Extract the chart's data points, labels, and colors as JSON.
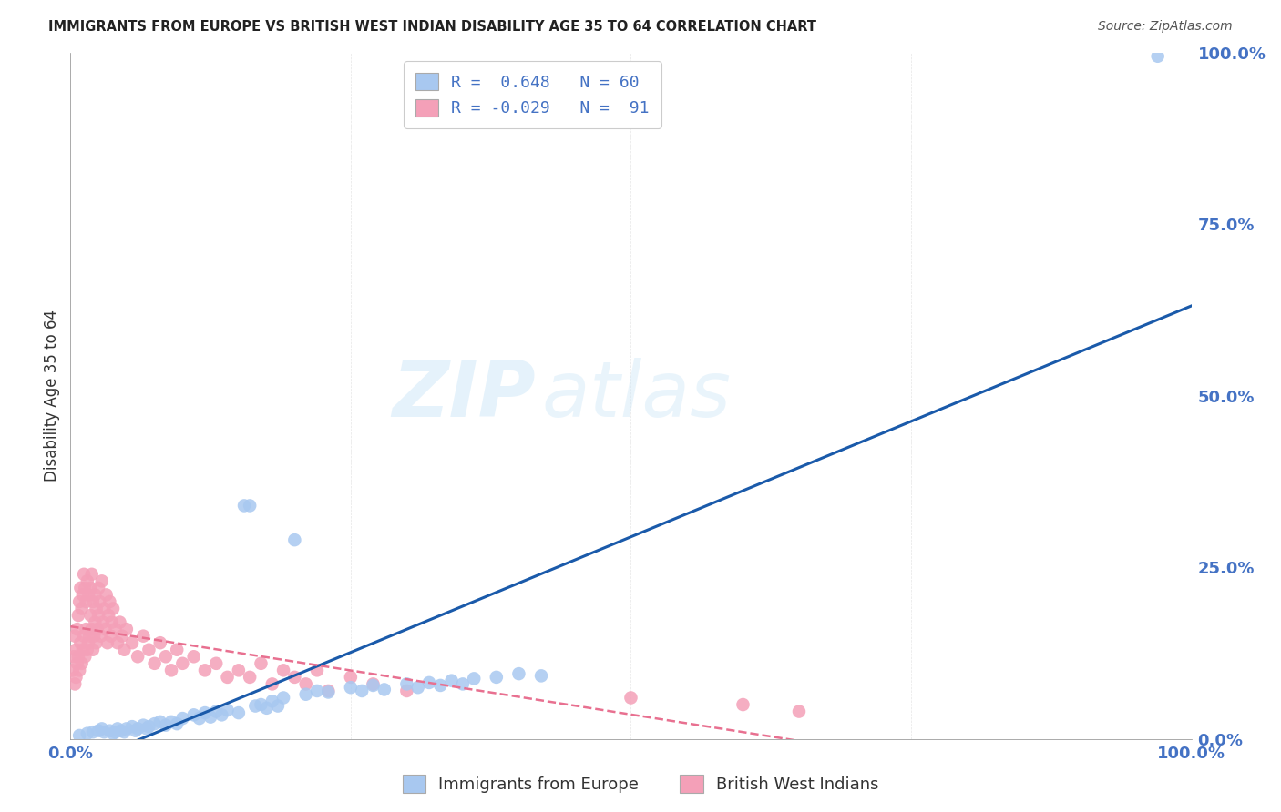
{
  "title": "IMMIGRANTS FROM EUROPE VS BRITISH WEST INDIAN DISABILITY AGE 35 TO 64 CORRELATION CHART",
  "source": "Source: ZipAtlas.com",
  "ylabel": "Disability Age 35 to 64",
  "xlim": [
    0.0,
    1.0
  ],
  "ylim": [
    0.0,
    1.0
  ],
  "y_tick_labels": [
    "0.0%",
    "25.0%",
    "50.0%",
    "75.0%",
    "100.0%"
  ],
  "y_tick_values": [
    0.0,
    0.25,
    0.5,
    0.75,
    1.0
  ],
  "x_tick_labels": [
    "0.0%",
    "100.0%"
  ],
  "x_tick_values": [
    0.0,
    1.0
  ],
  "watermark_part1": "ZIP",
  "watermark_part2": "atlas",
  "blue_R": 0.648,
  "blue_N": 60,
  "pink_R": -0.029,
  "pink_N": 91,
  "blue_color": "#a8c8f0",
  "pink_color": "#f4a0b8",
  "blue_line_color": "#1a5aaa",
  "pink_line_color": "#e87090",
  "grid_color": "#cccccc",
  "background_color": "#ffffff",
  "legend_label_1": "R =  0.648   N = 60",
  "legend_label_2": "R = -0.029   N =  91",
  "bottom_legend_1": "Immigrants from Europe",
  "bottom_legend_2": "British West Indians",
  "blue_scatter_x": [
    0.008,
    0.015,
    0.02,
    0.025,
    0.028,
    0.03,
    0.035,
    0.038,
    0.04,
    0.042,
    0.045,
    0.048,
    0.05,
    0.055,
    0.058,
    0.06,
    0.065,
    0.068,
    0.07,
    0.075,
    0.08,
    0.085,
    0.09,
    0.095,
    0.1,
    0.11,
    0.115,
    0.12,
    0.125,
    0.13,
    0.135,
    0.14,
    0.15,
    0.155,
    0.16,
    0.165,
    0.17,
    0.175,
    0.18,
    0.185,
    0.19,
    0.2,
    0.21,
    0.22,
    0.23,
    0.25,
    0.26,
    0.27,
    0.28,
    0.3,
    0.31,
    0.32,
    0.33,
    0.34,
    0.35,
    0.36,
    0.38,
    0.4,
    0.42,
    0.97
  ],
  "blue_scatter_y": [
    0.005,
    0.008,
    0.01,
    0.012,
    0.015,
    0.01,
    0.012,
    0.008,
    0.01,
    0.015,
    0.012,
    0.01,
    0.015,
    0.018,
    0.012,
    0.015,
    0.02,
    0.015,
    0.018,
    0.022,
    0.025,
    0.02,
    0.025,
    0.022,
    0.03,
    0.035,
    0.03,
    0.038,
    0.032,
    0.04,
    0.035,
    0.042,
    0.038,
    0.34,
    0.34,
    0.048,
    0.05,
    0.045,
    0.055,
    0.048,
    0.06,
    0.29,
    0.065,
    0.07,
    0.068,
    0.075,
    0.07,
    0.078,
    0.072,
    0.08,
    0.075,
    0.082,
    0.078,
    0.085,
    0.08,
    0.088,
    0.09,
    0.095,
    0.092,
    0.995
  ],
  "pink_scatter_x": [
    0.002,
    0.003,
    0.004,
    0.004,
    0.005,
    0.005,
    0.006,
    0.006,
    0.007,
    0.007,
    0.008,
    0.008,
    0.009,
    0.009,
    0.01,
    0.01,
    0.011,
    0.011,
    0.012,
    0.012,
    0.013,
    0.013,
    0.014,
    0.014,
    0.015,
    0.015,
    0.016,
    0.016,
    0.017,
    0.018,
    0.018,
    0.019,
    0.019,
    0.02,
    0.02,
    0.021,
    0.022,
    0.022,
    0.023,
    0.023,
    0.024,
    0.025,
    0.025,
    0.026,
    0.027,
    0.028,
    0.029,
    0.03,
    0.031,
    0.032,
    0.033,
    0.034,
    0.035,
    0.036,
    0.037,
    0.038,
    0.04,
    0.042,
    0.044,
    0.046,
    0.048,
    0.05,
    0.055,
    0.06,
    0.065,
    0.07,
    0.075,
    0.08,
    0.085,
    0.09,
    0.095,
    0.1,
    0.11,
    0.12,
    0.13,
    0.14,
    0.15,
    0.16,
    0.17,
    0.18,
    0.19,
    0.2,
    0.21,
    0.22,
    0.23,
    0.25,
    0.27,
    0.3,
    0.5,
    0.6,
    0.65
  ],
  "pink_scatter_y": [
    0.1,
    0.12,
    0.08,
    0.15,
    0.09,
    0.13,
    0.11,
    0.16,
    0.12,
    0.18,
    0.1,
    0.2,
    0.14,
    0.22,
    0.11,
    0.19,
    0.13,
    0.21,
    0.15,
    0.24,
    0.12,
    0.22,
    0.16,
    0.2,
    0.13,
    0.23,
    0.14,
    0.21,
    0.15,
    0.18,
    0.22,
    0.16,
    0.24,
    0.13,
    0.2,
    0.15,
    0.17,
    0.21,
    0.14,
    0.19,
    0.16,
    0.22,
    0.18,
    0.2,
    0.15,
    0.23,
    0.17,
    0.19,
    0.16,
    0.21,
    0.14,
    0.18,
    0.2,
    0.15,
    0.17,
    0.19,
    0.16,
    0.14,
    0.17,
    0.15,
    0.13,
    0.16,
    0.14,
    0.12,
    0.15,
    0.13,
    0.11,
    0.14,
    0.12,
    0.1,
    0.13,
    0.11,
    0.12,
    0.1,
    0.11,
    0.09,
    0.1,
    0.09,
    0.11,
    0.08,
    0.1,
    0.09,
    0.08,
    0.1,
    0.07,
    0.09,
    0.08,
    0.07,
    0.06,
    0.05,
    0.04
  ]
}
